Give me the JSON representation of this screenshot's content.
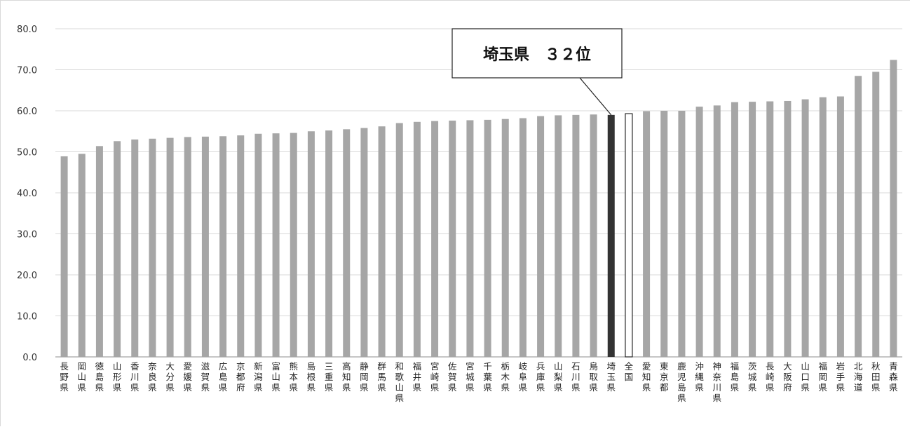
{
  "chart_data": {
    "type": "bar",
    "title": "",
    "xlabel": "",
    "ylabel": "",
    "ylim": [
      0,
      80
    ],
    "yticks": [
      "0.0",
      "10.0",
      "20.0",
      "30.0",
      "40.0",
      "50.0",
      "60.0",
      "70.0",
      "80.0"
    ],
    "grid": true,
    "categories": [
      "長野県",
      "岡山県",
      "徳島県",
      "山形県",
      "香川県",
      "奈良県",
      "大分県",
      "愛媛県",
      "滋賀県",
      "広島県",
      "京都府",
      "新潟県",
      "富山県",
      "熊本県",
      "島根県",
      "三重県",
      "高知県",
      "静岡県",
      "群馬県",
      "和歌山県",
      "福井県",
      "宮崎県",
      "佐賀県",
      "宮城県",
      "千葉県",
      "栃木県",
      "岐阜県",
      "兵庫県",
      "山梨県",
      "石川県",
      "鳥取県",
      "埼玉県",
      "全国",
      "愛知県",
      "東京都",
      "鹿児島県",
      "沖縄県",
      "神奈川県",
      "福島県",
      "茨城県",
      "長崎県",
      "大阪府",
      "山口県",
      "福岡県",
      "岩手県",
      "北海道",
      "秋田県",
      "青森県"
    ],
    "values": [
      48.9,
      49.5,
      51.4,
      52.6,
      53.0,
      53.2,
      53.4,
      53.6,
      53.7,
      53.8,
      54.0,
      54.4,
      54.5,
      54.6,
      55.0,
      55.2,
      55.5,
      55.8,
      56.2,
      57.0,
      57.3,
      57.5,
      57.6,
      57.7,
      57.8,
      58.0,
      58.2,
      58.7,
      58.9,
      59.0,
      59.1,
      59.0,
      59.3,
      59.9,
      60.0,
      60.0,
      61.0,
      61.3,
      62.1,
      62.2,
      62.3,
      62.4,
      62.8,
      63.3,
      63.5,
      68.5,
      69.5,
      72.4
    ],
    "highlight_color": "#333333",
    "bar_color": "#a6a6a6",
    "national_fill": "#ffffff",
    "highlight_category": "埼玉県",
    "national_category": "全国",
    "annotation": "埼玉県　３２位"
  }
}
